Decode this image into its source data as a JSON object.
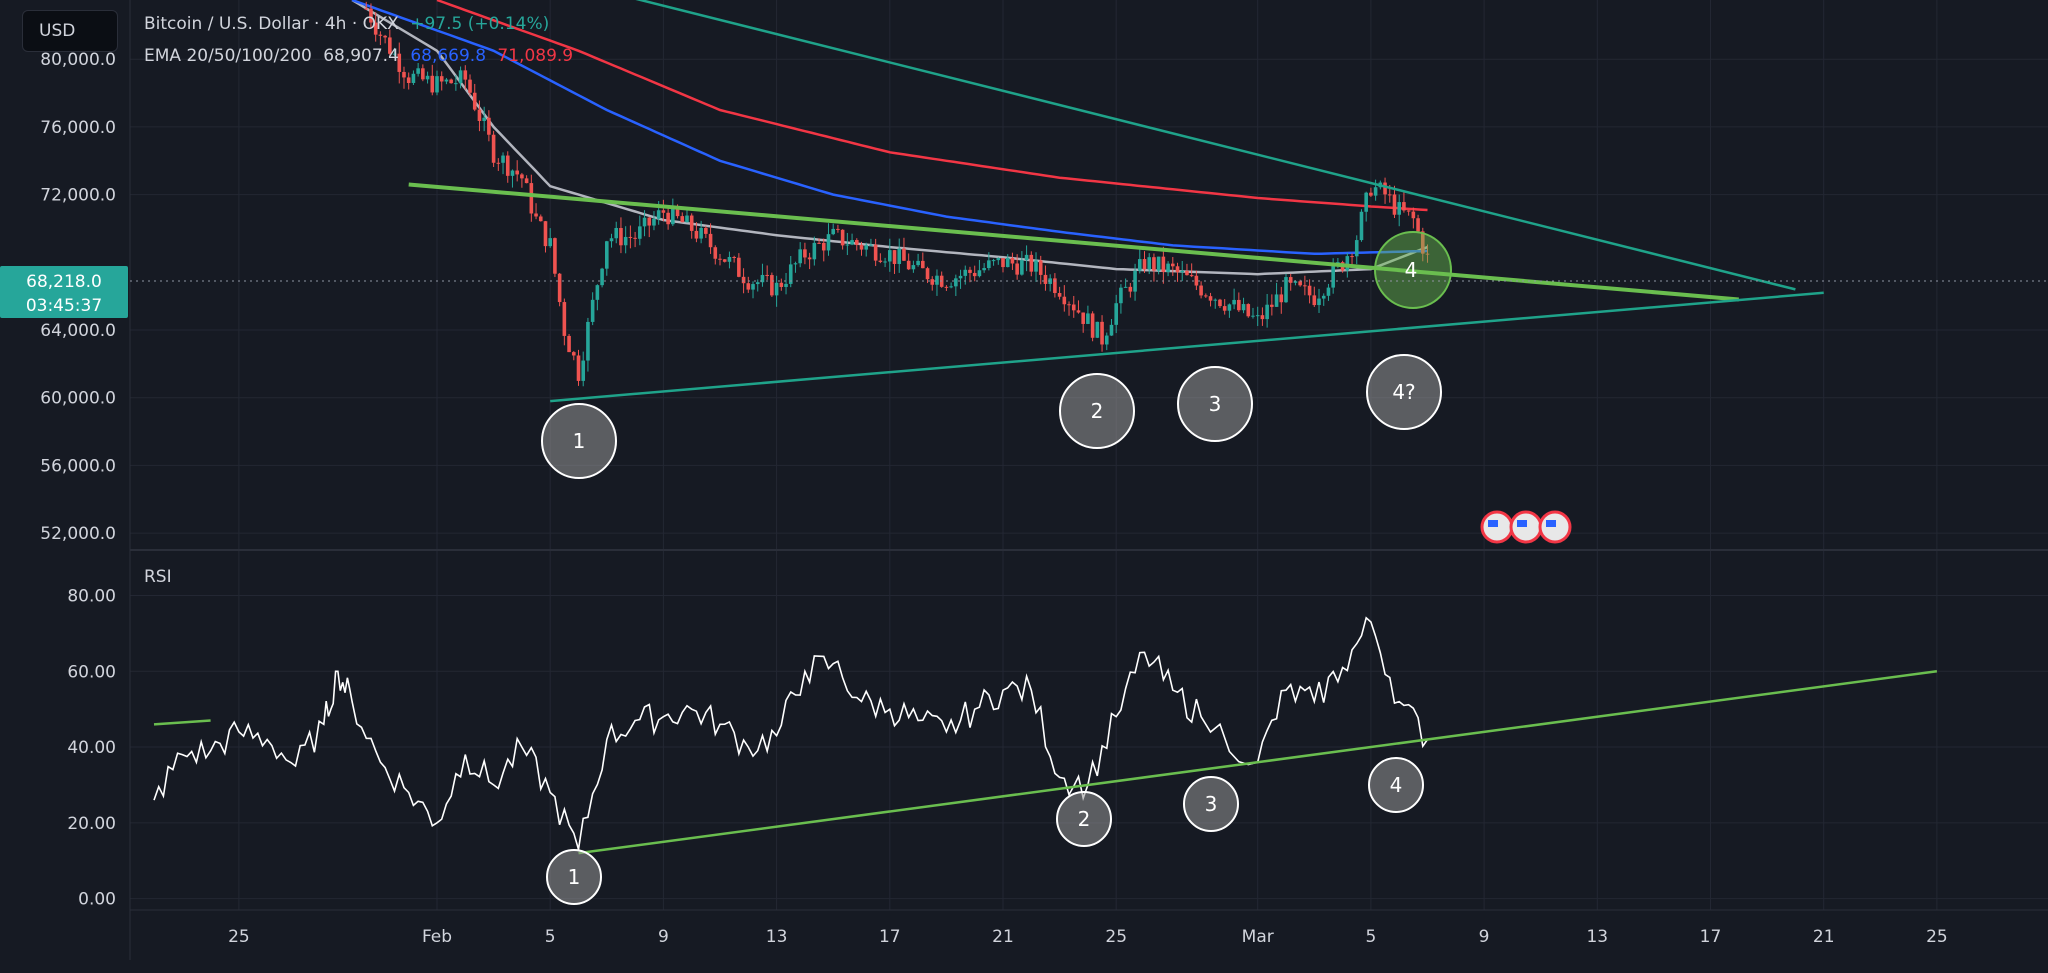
{
  "header": {
    "currency_button": "USD",
    "symbol_line": "Bitcoin / U.S. Dollar · 4h · OKX",
    "change": "+97.5 (+0.14%)",
    "ema_label": "EMA 20/50/100/200",
    "ema_values": [
      "68,907.4",
      "68,669.8",
      "71,089.9"
    ]
  },
  "price_badge": {
    "price": "68,218.0",
    "countdown": "03:45:37"
  },
  "rsi_label": "RSI",
  "colors": {
    "background": "#161a23",
    "grid": "#232733",
    "up": "#26a69a",
    "down": "#ef5350",
    "ema_fast": "#b2b5be",
    "ema_mid": "#2962ff",
    "ema_slow": "#f23645",
    "trend_green": "#6abe4f",
    "trend_teal": "#1fa38a"
  },
  "chart_data": [
    {
      "type": "candlestick",
      "title": "Bitcoin / U.S. Dollar · 4h · OKX",
      "y_ticks": [
        "80,000.0",
        "76,000.0",
        "72,000.0",
        "64,000.0",
        "60,000.0",
        "56,000.0",
        "52,000.0"
      ],
      "ylim": [
        51000,
        83500
      ],
      "x_ticks": [
        "25",
        "Feb",
        "5",
        "9",
        "13",
        "17",
        "21",
        "25",
        "Mar",
        "5",
        "9",
        "13",
        "17",
        "21",
        "25"
      ],
      "price_path": [
        [
          "Jan 29 12:00",
          83000
        ],
        [
          "Jan 30",
          81500
        ],
        [
          "Jan 31",
          79000
        ],
        [
          "Feb 1",
          78500
        ],
        [
          "Feb 2",
          78800
        ],
        [
          "Feb 3",
          74500
        ],
        [
          "Feb 4",
          73000
        ],
        [
          "Feb 4 12:00",
          70500
        ],
        [
          "Feb 5",
          69000
        ],
        [
          "Feb 5 12:00",
          64000
        ],
        [
          "Feb 6",
          61500
        ],
        [
          "Feb 6 12:00",
          65500
        ],
        [
          "Feb 7",
          69500
        ],
        [
          "Feb 8",
          69500
        ],
        [
          "Feb 9",
          71000
        ],
        [
          "Feb 10",
          70000
        ],
        [
          "Feb 11",
          68500
        ],
        [
          "Feb 12",
          67000
        ],
        [
          "Feb 13",
          66500
        ],
        [
          "Feb 14",
          68500
        ],
        [
          "Feb 15",
          69500
        ],
        [
          "Feb 16",
          69000
        ],
        [
          "Feb 17",
          68500
        ],
        [
          "Feb 18",
          67500
        ],
        [
          "Feb 19",
          67000
        ],
        [
          "Feb 20",
          67500
        ],
        [
          "Feb 21",
          68000
        ],
        [
          "Feb 22",
          67800
        ],
        [
          "Feb 23",
          66500
        ],
        [
          "Feb 24",
          64500
        ],
        [
          "Feb 24 12:00",
          63500
        ],
        [
          "Feb 25",
          65500
        ],
        [
          "Feb 26",
          68000
        ],
        [
          "Feb 27",
          67500
        ],
        [
          "Feb 28",
          66500
        ],
        [
          "Mar 1",
          64500
        ],
        [
          "Mar 2",
          66500
        ],
        [
          "Mar 3",
          66000
        ],
        [
          "Mar 4",
          68000
        ],
        [
          "Mar 4 12:00",
          69500
        ],
        [
          "Mar 5",
          72500
        ],
        [
          "Mar 5 12:00",
          72000
        ],
        [
          "Mar 6",
          71000
        ],
        [
          "Mar 6 12:00",
          70500
        ],
        [
          "Mar 7",
          68218
        ]
      ],
      "ema_series": [
        {
          "name": "EMA 20",
          "points": [
            [
              "Jan 29",
              83500
            ],
            [
              "Feb 1",
              80500
            ],
            [
              "Feb 3",
              76000
            ],
            [
              "Feb 5",
              72500
            ],
            [
              "Feb 9",
              70500
            ],
            [
              "Feb 13",
              69600
            ],
            [
              "Feb 17",
              68900
            ],
            [
              "Feb 21",
              68300
            ],
            [
              "Feb 25",
              67600
            ],
            [
              "Mar 1",
              67300
            ],
            [
              "Mar 5",
              67600
            ],
            [
              "Mar 7",
              68900
            ]
          ]
        },
        {
          "name": "EMA 50",
          "points": [
            [
              "Jan 29",
              83500
            ],
            [
              "Feb 3",
              80500
            ],
            [
              "Feb 7",
              77000
            ],
            [
              "Feb 11",
              74000
            ],
            [
              "Feb 15",
              72000
            ],
            [
              "Feb 19",
              70700
            ],
            [
              "Feb 23",
              69800
            ],
            [
              "Feb 27",
              69000
            ],
            [
              "Mar 3",
              68500
            ],
            [
              "Mar 7",
              68669.8
            ]
          ]
        },
        {
          "name": "EMA 100",
          "points": [
            [
              "Feb 1",
              83500
            ],
            [
              "Feb 6",
              80500
            ],
            [
              "Feb 11",
              77000
            ],
            [
              "Feb 17",
              74500
            ],
            [
              "Feb 23",
              73000
            ],
            [
              "Mar 1",
              71800
            ],
            [
              "Mar 5",
              71300
            ],
            [
              "Mar 7",
              71089.9
            ]
          ]
        }
      ],
      "trendlines": [
        {
          "from": [
            "Jan 31",
            72600
          ],
          "to": [
            "Mar 18",
            65800
          ]
        },
        {
          "from": [
            "Feb 5",
            59800
          ],
          "to": [
            "Mar 21",
            66200
          ]
        },
        {
          "from": [
            "Feb 7",
            84000
          ],
          "to": [
            "Mar 20",
            66400
          ]
        }
      ],
      "annotations": [
        "1",
        "2",
        "3",
        "4?",
        "4"
      ]
    },
    {
      "type": "line",
      "title": "RSI",
      "y_ticks": [
        "80.00",
        "60.00",
        "40.00",
        "20.00",
        "0.00"
      ],
      "ylim": [
        -3,
        92
      ],
      "x": [
        "Jan 22",
        "Jan 23",
        "Jan 24",
        "Jan 25",
        "Jan 26",
        "Jan 27",
        "Jan 28",
        "Jan 28 12:00",
        "Jan 29",
        "Jan 30",
        "Jan 31",
        "Feb 1",
        "Feb 2",
        "Feb 3",
        "Feb 4",
        "Feb 5",
        "Feb 6",
        "Feb 7",
        "Feb 8",
        "Feb 9",
        "Feb 10",
        "Feb 11",
        "Feb 12",
        "Feb 13",
        "Feb 14",
        "Feb 15",
        "Feb 16",
        "Feb 17",
        "Feb 18",
        "Feb 19",
        "Feb 20",
        "Feb 21",
        "Feb 22",
        "Feb 23",
        "Feb 24",
        "Feb 25",
        "Feb 26",
        "Feb 27",
        "Feb 28",
        "Mar 1",
        "Mar 2",
        "Mar 3",
        "Mar 4",
        "Mar 5",
        "Mar 6",
        "Mar 7"
      ],
      "values": [
        26,
        38,
        39,
        44,
        42,
        35,
        46,
        60,
        52,
        36,
        28,
        20,
        38,
        30,
        40,
        28,
        13,
        42,
        47,
        48,
        50,
        46,
        40,
        43,
        60,
        62,
        52,
        50,
        47,
        44,
        50,
        55,
        55,
        32,
        30,
        48,
        65,
        55,
        48,
        36,
        55,
        52,
        61,
        73,
        52,
        42
      ],
      "trendlines": [
        {
          "from": [
            "Jan 22",
            46
          ],
          "to": [
            "Jan 24",
            47
          ]
        },
        {
          "from": [
            "Feb 6",
            12
          ],
          "to": [
            "Mar 25",
            60
          ]
        }
      ],
      "annotations": [
        "1",
        "2",
        "3",
        "4"
      ]
    }
  ]
}
